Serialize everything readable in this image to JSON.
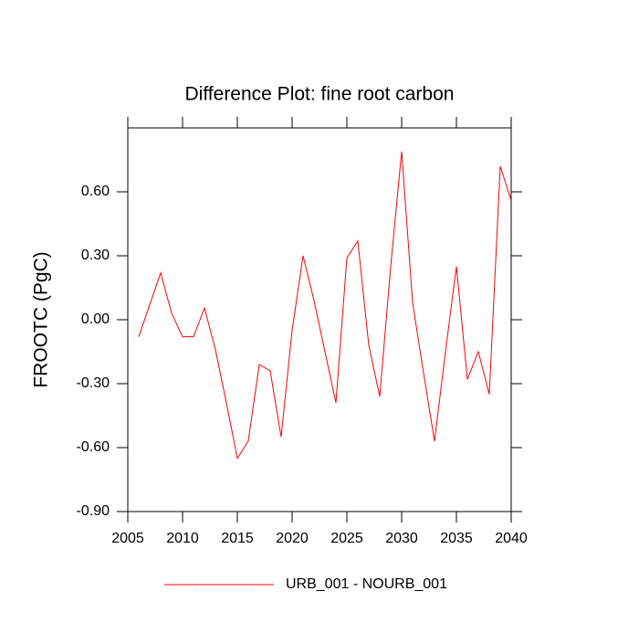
{
  "chart_data": {
    "type": "line",
    "title": "Difference Plot: fine root carbon",
    "ylabel": "FROOTC  (PgC)",
    "x": [
      2006,
      2007,
      2008,
      2009,
      2010,
      2011,
      2012,
      2013,
      2014,
      2015,
      2016,
      2017,
      2018,
      2019,
      2020,
      2021,
      2022,
      2023,
      2024,
      2025,
      2026,
      2027,
      2028,
      2029,
      2030,
      2031,
      2032,
      2033,
      2034,
      2035,
      2036,
      2037,
      2038,
      2039,
      2040
    ],
    "series": [
      {
        "name": "URB_001 - NOURB_001",
        "color": "#ff0000",
        "values": [
          -0.08,
          0.07,
          0.22,
          0.03,
          -0.08,
          -0.08,
          0.055,
          -0.14,
          -0.39,
          -0.65,
          -0.57,
          -0.21,
          -0.24,
          -0.55,
          -0.05,
          0.3,
          0.09,
          -0.15,
          -0.39,
          0.29,
          0.37,
          -0.12,
          -0.36,
          0.25,
          0.79,
          0.08,
          -0.25,
          -0.57,
          -0.15,
          0.25,
          -0.28,
          -0.15,
          -0.35,
          0.72,
          0.56
        ]
      }
    ],
    "xlim": [
      2005,
      2040
    ],
    "xticks": [
      2005,
      2010,
      2015,
      2020,
      2025,
      2030,
      2035,
      2040
    ],
    "ylim": [
      -0.9,
      0.9
    ],
    "yticks": [
      {
        "value": -0.9,
        "label": "-0.90"
      },
      {
        "value": -0.6,
        "label": "-0.60"
      },
      {
        "value": -0.3,
        "label": "-0.30"
      },
      {
        "value": 0,
        "label": "0.00"
      },
      {
        "value": 0.3,
        "label": "0.30"
      },
      {
        "value": 0.6,
        "label": "0.60"
      }
    ]
  }
}
